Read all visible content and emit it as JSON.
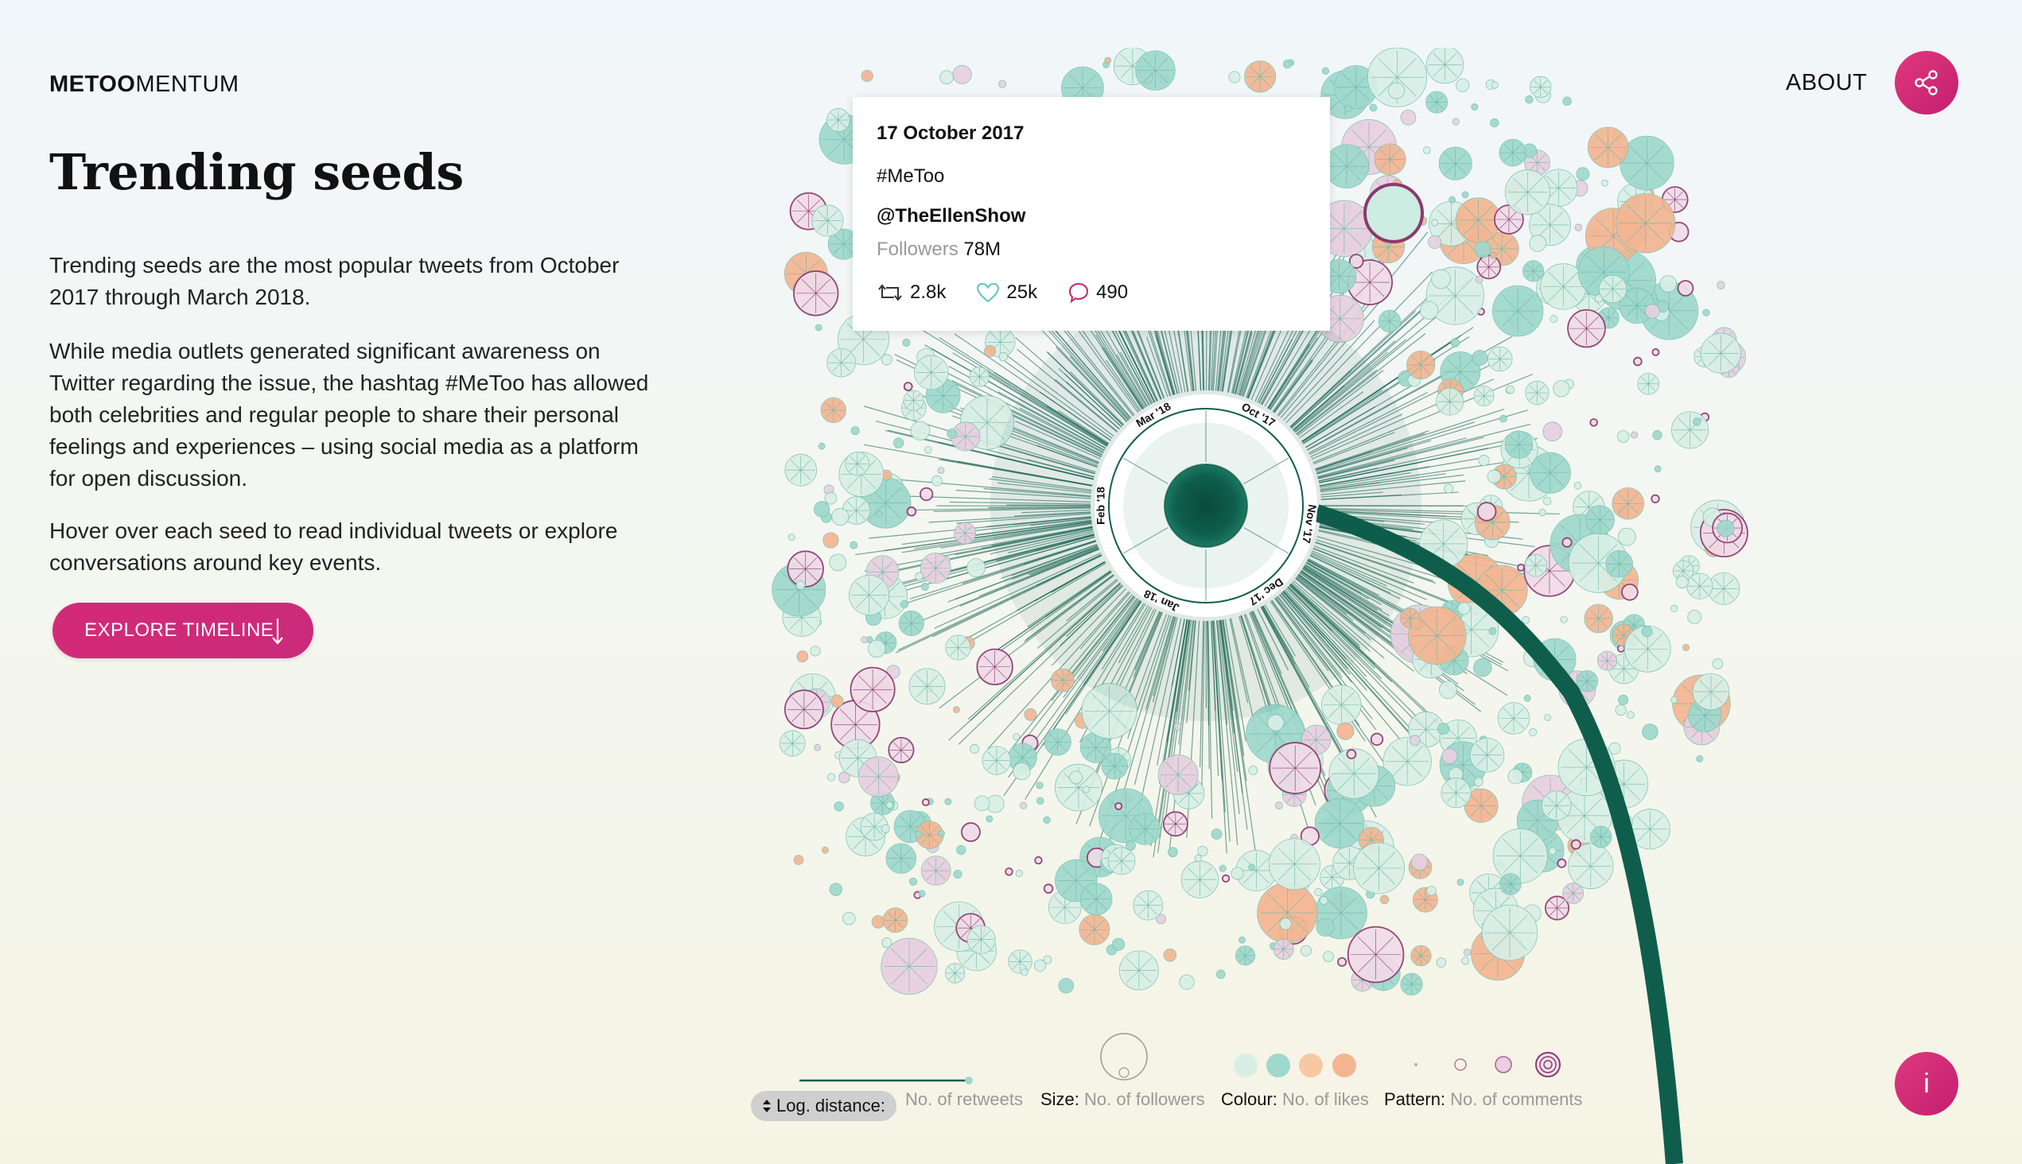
{
  "header": {
    "logo_bold": "METOO",
    "logo_light": "MENTUM",
    "about_label": "ABOUT"
  },
  "intro": {
    "title": "Trending seeds",
    "paragraphs": [
      "Trending seeds are the most popular tweets from October 2017 through March 2018.",
      "While media outlets generated significant awareness on Twitter regarding the issue, the hashtag #MeToo has allowed both celebrities and regular people to share their personal feelings and experiences – using social media as a platform for open discussion.",
      "Hover over each seed to read individual tweets or explore conversations around key events."
    ],
    "explore_label": "EXPLORE TIMELINE"
  },
  "tooltip": {
    "date": "17 October 2017",
    "hashtag": "#MeToo",
    "user": "@TheEllenShow",
    "followers_label": "Followers",
    "followers_value": "78M",
    "retweets": "2.8k",
    "likes": "25k",
    "comments": "490"
  },
  "timeline_ring": {
    "months": [
      "Oct '17",
      "Nov '17",
      "Dec '17",
      "Jan '18",
      "Feb '18",
      "Mar '18"
    ]
  },
  "legend": {
    "log_toggle": "Log. distance:",
    "distance": "No. of retweets",
    "size_key": "Size:",
    "size_val": "No. of followers",
    "colour_key": "Colour:",
    "colour_val": "No. of likes",
    "pattern_key": "Pattern:",
    "pattern_val": "No. of comments"
  },
  "colors": {
    "accent": "#d32a78",
    "stem": "#0f5e4c",
    "seed_low": "#d9efe6",
    "seed_mid": "#9fd8cc",
    "seed_peach": "#f4b592",
    "seed_purple": "#8a3a6e"
  },
  "icons": {
    "share": "share-icon",
    "info": "info-icon",
    "arrow": "arrow-down-icon",
    "retweet": "retweet-icon",
    "like": "heart-icon",
    "comment": "comment-icon"
  }
}
